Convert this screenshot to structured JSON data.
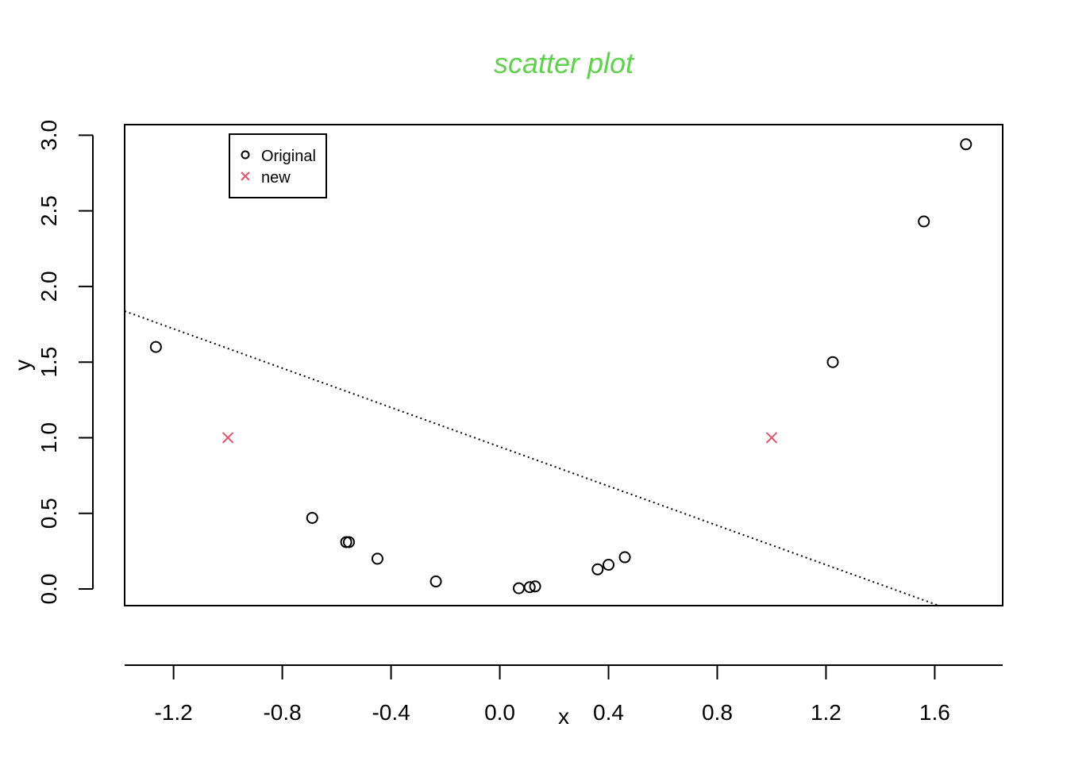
{
  "chart_data": {
    "type": "scatter",
    "title": "scatter plot",
    "xlabel": "x",
    "ylabel": "y",
    "xlim": [
      -1.38,
      1.85
    ],
    "ylim": [
      -0.11,
      3.07
    ],
    "x_ticks": [
      -1.2,
      -0.8,
      -0.4,
      0.0,
      0.4,
      0.8,
      1.2,
      1.6
    ],
    "x_tick_labels": [
      "-1.2",
      "-0.8",
      "-0.4",
      "0.0",
      "0.4",
      "0.8",
      "1.2",
      "1.6"
    ],
    "y_ticks": [
      0.0,
      0.5,
      1.0,
      1.5,
      2.0,
      2.5,
      3.0
    ],
    "y_tick_labels": [
      "0.0",
      "0.5",
      "1.0",
      "1.5",
      "2.0",
      "2.5",
      "3.0"
    ],
    "grid": false,
    "legend_position": "top-left",
    "series": [
      {
        "name": "Original",
        "marker": "circle-open",
        "color": "#000000",
        "points": [
          [
            -1.265,
            1.6
          ],
          [
            -0.69,
            0.47
          ],
          [
            -0.565,
            0.31
          ],
          [
            -0.555,
            0.31
          ],
          [
            -0.45,
            0.2
          ],
          [
            -0.235,
            0.05
          ],
          [
            0.07,
            0.005
          ],
          [
            0.11,
            0.012
          ],
          [
            0.13,
            0.017
          ],
          [
            0.36,
            0.13
          ],
          [
            0.4,
            0.16
          ],
          [
            0.46,
            0.21
          ],
          [
            1.225,
            1.5
          ],
          [
            1.56,
            2.43
          ],
          [
            1.715,
            2.94
          ]
        ]
      },
      {
        "name": "new",
        "marker": "x",
        "color": "#DF536B",
        "points": [
          [
            -1.0,
            1.0
          ],
          [
            1.0,
            1.0
          ]
        ]
      }
    ],
    "reference_line": {
      "style": "dotted",
      "color": "#000000",
      "intercept": 0.94,
      "slope": -0.65
    }
  }
}
